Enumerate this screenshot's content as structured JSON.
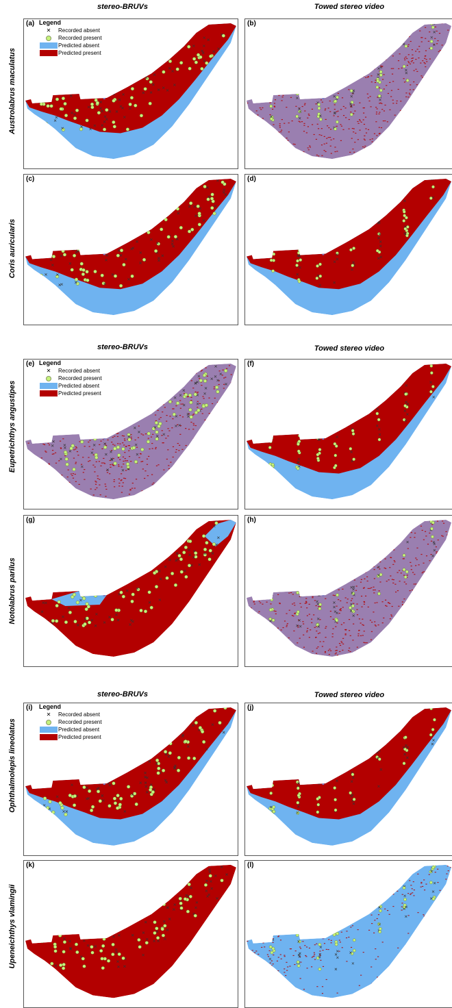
{
  "column_headers": {
    "left": "stereo-BRUVs",
    "right": "Towed stereo video"
  },
  "legend": {
    "title": "Legend",
    "recorded_absent": "Recorded absent",
    "recorded_present": "Recorded present",
    "predicted_absent": "Predicted absent",
    "predicted_present": "Predicted present"
  },
  "colors": {
    "predicted_absent": "#6fb3f0",
    "predicted_present": "#b30000",
    "recorded_present": "#c6f27a",
    "recorded_absent": "#333333"
  },
  "species": [
    "Austrolabrus maculatus",
    "Coris auricularis",
    "Eupetrichthys angustipes",
    "Notolabrus parilus",
    "Ophthalmolepis lineolatus",
    "Upeneichthys vlamingii"
  ],
  "panels": [
    {
      "label": "(a)",
      "method": "stereo-BRUVs",
      "prediction": "present-nearshore",
      "show_legend": true
    },
    {
      "label": "(b)",
      "method": "Towed stereo video",
      "prediction": "speckled"
    },
    {
      "label": "(c)",
      "method": "stereo-BRUVs",
      "prediction": "present-nearshore"
    },
    {
      "label": "(d)",
      "method": "Towed stereo video",
      "prediction": "present-nearshore"
    },
    {
      "label": "(e)",
      "method": "stereo-BRUVs",
      "prediction": "speckled",
      "show_legend": true
    },
    {
      "label": "(f)",
      "method": "Towed stereo video",
      "prediction": "present-nearshore"
    },
    {
      "label": "(g)",
      "method": "stereo-BRUVs",
      "prediction": "present-mostly"
    },
    {
      "label": "(h)",
      "method": "Towed stereo video",
      "prediction": "speckled"
    },
    {
      "label": "(i)",
      "method": "stereo-BRUVs",
      "prediction": "present-nearshore",
      "show_legend": true
    },
    {
      "label": "(j)",
      "method": "Towed stereo video",
      "prediction": "present-nearshore"
    },
    {
      "label": "(k)",
      "method": "stereo-BRUVs",
      "prediction": "present-all"
    },
    {
      "label": "(l)",
      "method": "Towed stereo video",
      "prediction": "speckled-fade"
    }
  ]
}
